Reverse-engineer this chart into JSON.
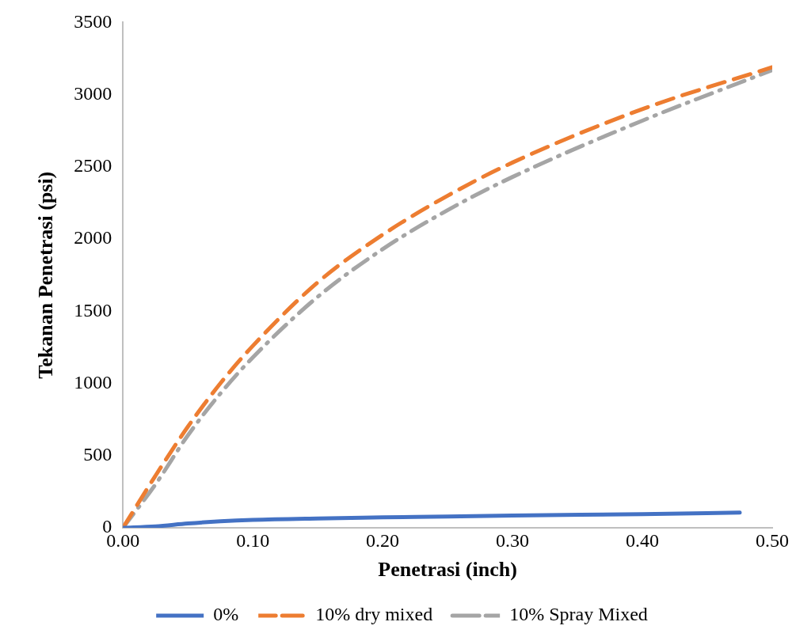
{
  "chart_data": {
    "type": "line",
    "xlabel": "Penetrasi (inch)",
    "ylabel": "Tekanan Penetrasi (psi)",
    "xlim": [
      0,
      0.5
    ],
    "xticks": [
      {
        "value": 0,
        "label": "0.00"
      },
      {
        "value": 0.1,
        "label": "0.10"
      },
      {
        "value": 0.2,
        "label": "0.20"
      },
      {
        "value": 0.3,
        "label": "0.30"
      },
      {
        "value": 0.4,
        "label": "0.40"
      },
      {
        "value": 0.5,
        "label": "0.50"
      }
    ],
    "ylim": [
      0,
      3500
    ],
    "yticks": [
      0,
      500,
      1000,
      1500,
      2000,
      2500,
      3000,
      3500
    ],
    "grid": false,
    "legend": "bottom",
    "marker": "none",
    "series": [
      {
        "name": "0%",
        "color": "#4472c4",
        "line_style": "solid",
        "x": [
          0,
          0.025,
          0.05,
          0.075,
          0.1,
          0.15,
          0.2,
          0.25,
          0.3,
          0.4,
          0.475
        ],
        "values": [
          0,
          10,
          30,
          45,
          55,
          65,
          72,
          78,
          85,
          95,
          105
        ]
      },
      {
        "name": "10% dry mixed",
        "color": "#ed7d31",
        "line_style": "dashed",
        "x": [
          0,
          0.025,
          0.05,
          0.075,
          0.1,
          0.15,
          0.2,
          0.25,
          0.3,
          0.4,
          0.5
        ],
        "values": [
          0,
          360,
          700,
          1000,
          1260,
          1700,
          2030,
          2300,
          2530,
          2900,
          3190
        ]
      },
      {
        "name": "10% Spray Mixed",
        "color": "#a5a5a5",
        "line_style": "dashdot",
        "x": [
          0,
          0.025,
          0.05,
          0.075,
          0.1,
          0.15,
          0.2,
          0.25,
          0.3,
          0.4,
          0.5
        ],
        "values": [
          0,
          300,
          640,
          930,
          1180,
          1600,
          1930,
          2200,
          2430,
          2820,
          3170
        ]
      }
    ]
  }
}
